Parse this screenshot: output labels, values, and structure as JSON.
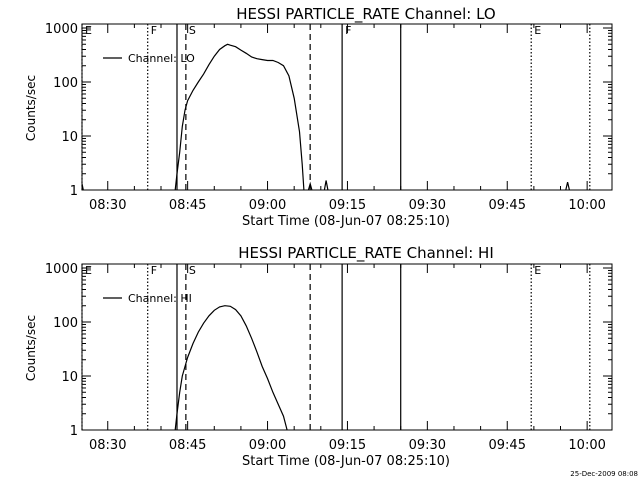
{
  "footer": {
    "timestamp": "25-Dec-2009 08:08"
  },
  "chart_data": [
    {
      "type": "line",
      "title": "HESSI PARTICLE_RATE Channel: LO",
      "xlabel": "Start Time (08-Jun-07 08:25:10)",
      "ylabel": "Counts/sec",
      "xlim": [
        "08:25:10",
        "10:04:40"
      ],
      "ylim": [
        1,
        1000
      ],
      "yscale": "log",
      "x_ticks": [
        "08:30",
        "08:45",
        "09:00",
        "09:15",
        "09:30",
        "09:45",
        "10:00"
      ],
      "y_ticks": [
        "1",
        "10",
        "100",
        "1000"
      ],
      "legend": {
        "placement": "top-left",
        "entries": [
          "Channel: LO"
        ]
      },
      "markers": [
        {
          "time": "08:25:10",
          "style": "dotted",
          "label": "E"
        },
        {
          "time": "08:37:30",
          "style": "dotted",
          "label": "F"
        },
        {
          "time": "08:43:00",
          "style": "solid",
          "label": ""
        },
        {
          "time": "08:44:40",
          "style": "dashed",
          "label": "S"
        },
        {
          "time": "09:08:00",
          "style": "dashed",
          "label": ""
        },
        {
          "time": "09:14:00",
          "style": "solid",
          "label": "F"
        },
        {
          "time": "09:25:00",
          "style": "solid",
          "label": ""
        },
        {
          "time": "09:49:30",
          "style": "dotted",
          "label": "E"
        },
        {
          "time": "10:00:30",
          "style": "dotted",
          "label": ""
        }
      ],
      "series": [
        {
          "name": "Channel: LO",
          "segments": [
            [
              [
                "08:25:10",
                1.3
              ],
              [
                "08:25:25",
                1.0
              ]
            ],
            [
              [
                "08:42:40",
                1.0
              ],
              [
                "08:43:00",
                2.0
              ],
              [
                "08:43:30",
                5.0
              ],
              [
                "08:44:00",
                15
              ],
              [
                "08:44:30",
                30
              ],
              [
                "08:45:00",
                45
              ],
              [
                "08:46:00",
                70
              ],
              [
                "08:47:00",
                100
              ],
              [
                "08:48:00",
                140
              ],
              [
                "08:49:00",
                210
              ],
              [
                "08:50:00",
                300
              ],
              [
                "08:51:00",
                400
              ],
              [
                "08:52:00",
                470
              ],
              [
                "08:52:30",
                500
              ],
              [
                "08:53:00",
                480
              ],
              [
                "08:54:00",
                450
              ],
              [
                "08:55:00",
                390
              ],
              [
                "08:56:00",
                340
              ],
              [
                "08:57:00",
                290
              ],
              [
                "08:58:00",
                270
              ],
              [
                "08:59:00",
                260
              ],
              [
                "09:00:00",
                250
              ],
              [
                "09:01:00",
                250
              ],
              [
                "09:02:00",
                230
              ],
              [
                "09:03:00",
                200
              ],
              [
                "09:04:00",
                130
              ],
              [
                "09:05:00",
                50
              ],
              [
                "09:06:00",
                12
              ],
              [
                "09:06:30",
                3
              ],
              [
                "09:06:50",
                1.0
              ]
            ],
            [
              [
                "09:07:40",
                1.0
              ],
              [
                "09:08:00",
                1.3
              ],
              [
                "09:08:20",
                1.0
              ]
            ],
            [
              [
                "09:10:40",
                1.0
              ],
              [
                "09:11:00",
                1.5
              ],
              [
                "09:11:20",
                1.0
              ]
            ],
            [
              [
                "09:56:00",
                1.0
              ],
              [
                "09:56:20",
                1.4
              ],
              [
                "09:56:40",
                1.0
              ]
            ]
          ]
        }
      ]
    },
    {
      "type": "line",
      "title": "HESSI PARTICLE_RATE Channel: HI",
      "xlabel": "Start Time (08-Jun-07 08:25:10)",
      "ylabel": "Counts/sec",
      "xlim": [
        "08:25:10",
        "10:04:40"
      ],
      "ylim": [
        1,
        1000
      ],
      "yscale": "log",
      "x_ticks": [
        "08:30",
        "08:45",
        "09:00",
        "09:15",
        "09:30",
        "09:45",
        "10:00"
      ],
      "y_ticks": [
        "1",
        "10",
        "100",
        "1000"
      ],
      "legend": {
        "placement": "top-left",
        "entries": [
          "Channel: HI"
        ]
      },
      "markers": [
        {
          "time": "08:25:10",
          "style": "dotted",
          "label": "E"
        },
        {
          "time": "08:37:30",
          "style": "dotted",
          "label": "F"
        },
        {
          "time": "08:43:00",
          "style": "solid",
          "label": ""
        },
        {
          "time": "08:44:40",
          "style": "dashed",
          "label": "S"
        },
        {
          "time": "09:08:00",
          "style": "dashed",
          "label": ""
        },
        {
          "time": "09:14:00",
          "style": "solid",
          "label": ""
        },
        {
          "time": "09:25:00",
          "style": "solid",
          "label": ""
        },
        {
          "time": "09:49:30",
          "style": "dotted",
          "label": "E"
        },
        {
          "time": "10:00:30",
          "style": "dotted",
          "label": ""
        }
      ],
      "series": [
        {
          "name": "Channel: HI",
          "segments": [
            [
              [
                "08:42:40",
                1.0
              ],
              [
                "08:43:00",
                2.0
              ],
              [
                "08:43:30",
                5.0
              ],
              [
                "08:44:00",
                10
              ],
              [
                "08:44:30",
                15
              ],
              [
                "08:45:00",
                22
              ],
              [
                "08:46:00",
                40
              ],
              [
                "08:47:00",
                65
              ],
              [
                "08:48:00",
                95
              ],
              [
                "08:49:00",
                130
              ],
              [
                "08:50:00",
                165
              ],
              [
                "08:51:00",
                190
              ],
              [
                "08:52:00",
                200
              ],
              [
                "08:53:00",
                195
              ],
              [
                "08:54:00",
                170
              ],
              [
                "08:55:00",
                130
              ],
              [
                "08:56:00",
                85
              ],
              [
                "08:57:00",
                50
              ],
              [
                "08:58:00",
                28
              ],
              [
                "08:59:00",
                15
              ],
              [
                "09:00:00",
                9
              ],
              [
                "09:01:00",
                5
              ],
              [
                "09:02:00",
                3
              ],
              [
                "09:03:00",
                1.8
              ],
              [
                "09:03:40",
                1.0
              ]
            ]
          ]
        }
      ]
    }
  ]
}
